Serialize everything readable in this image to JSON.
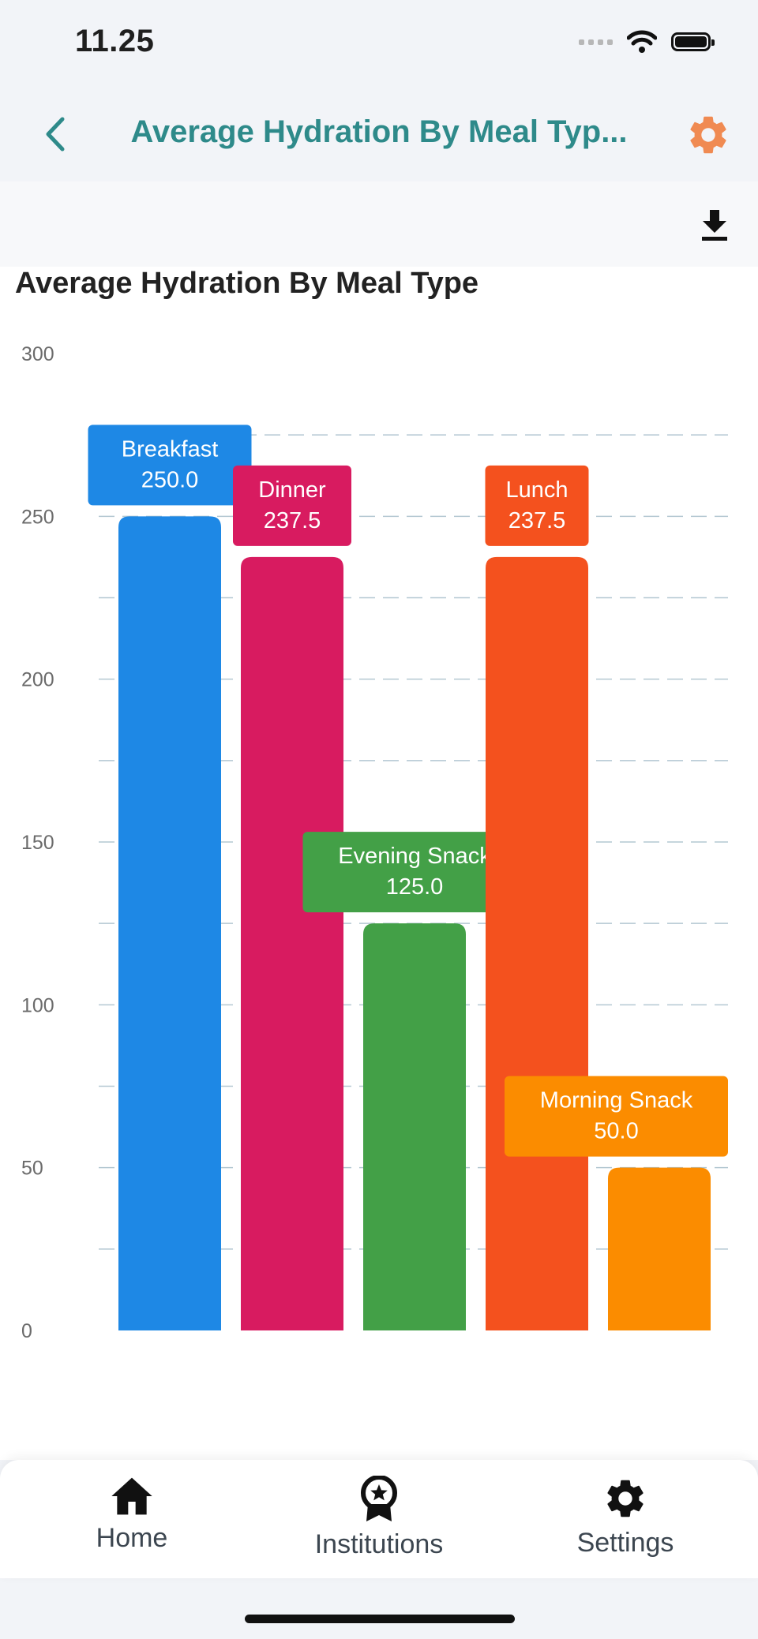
{
  "status_bar": {
    "time": "11.25"
  },
  "app_bar": {
    "title": "Average Hydration By Meal Typ..."
  },
  "chart_data": {
    "type": "bar",
    "title": "Average Hydration By Meal Type",
    "xlabel": "",
    "ylabel": "",
    "ylim": [
      0,
      300
    ],
    "yticks": [
      "0",
      "50",
      "100",
      "150",
      "200",
      "250",
      "300"
    ],
    "grid": true,
    "categories": [
      "Breakfast",
      "Dinner",
      "Evening Snack",
      "Lunch",
      "Morning Snack"
    ],
    "values": [
      250.0,
      237.5,
      125.0,
      237.5,
      50.0
    ],
    "value_labels": [
      "250.0",
      "237.5",
      "125.0",
      "237.5",
      "50.0"
    ],
    "colors": [
      "#1e88e5",
      "#d81b60",
      "#43a047",
      "#f4511e",
      "#fb8c00"
    ]
  },
  "bottom_nav": {
    "items": [
      {
        "label": "Home",
        "icon": "home-icon"
      },
      {
        "label": "Institutions",
        "icon": "award-icon"
      },
      {
        "label": "Settings",
        "icon": "gear-icon"
      }
    ]
  },
  "colors": {
    "accent": "#2e8a8a",
    "settings_icon": "#f08a52"
  }
}
